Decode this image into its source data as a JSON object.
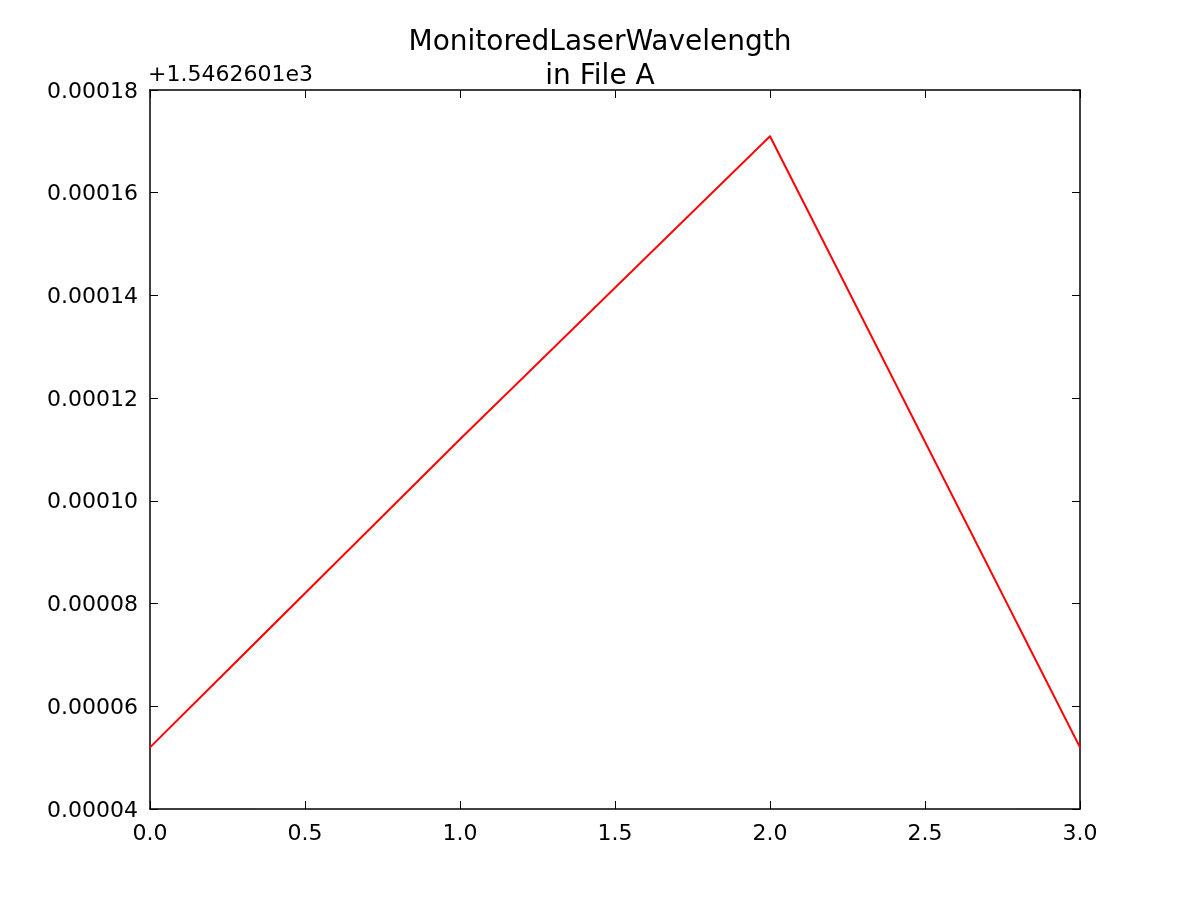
{
  "chart_data": {
    "type": "line",
    "title": "MonitoredLaserWavelength\nin File A",
    "annotations": [
      "+1.5462601e3"
    ],
    "x": [
      0,
      1,
      2,
      3
    ],
    "series": [
      {
        "color": "#ff0000",
        "values": [
          5.2e-05,
          0.000112,
          0.000171,
          5.2e-05
        ]
      }
    ],
    "xlim": [
      0,
      3
    ],
    "xticks": [
      {
        "value": 0,
        "label": "0.0"
      },
      {
        "value": 0.5,
        "label": "0.5"
      },
      {
        "value": 1,
        "label": "1.0"
      },
      {
        "value": 1.5,
        "label": "1.5"
      },
      {
        "value": 2,
        "label": "2.0"
      },
      {
        "value": 2.5,
        "label": "2.5"
      },
      {
        "value": 3,
        "label": "3.0"
      }
    ],
    "ylim": [
      4e-05,
      0.00018
    ],
    "yticks": [
      {
        "value": 4e-05,
        "label": "0.00004"
      },
      {
        "value": 6e-05,
        "label": "0.00006"
      },
      {
        "value": 8e-05,
        "label": "0.00008"
      },
      {
        "value": 0.0001,
        "label": "0.00010"
      },
      {
        "value": 0.00012,
        "label": "0.00012"
      },
      {
        "value": 0.00014,
        "label": "0.00014"
      },
      {
        "value": 0.00016,
        "label": "0.00016"
      },
      {
        "value": 0.00018,
        "label": "0.00018"
      }
    ],
    "grid": false,
    "marker": "none",
    "line_style": "solid"
  }
}
